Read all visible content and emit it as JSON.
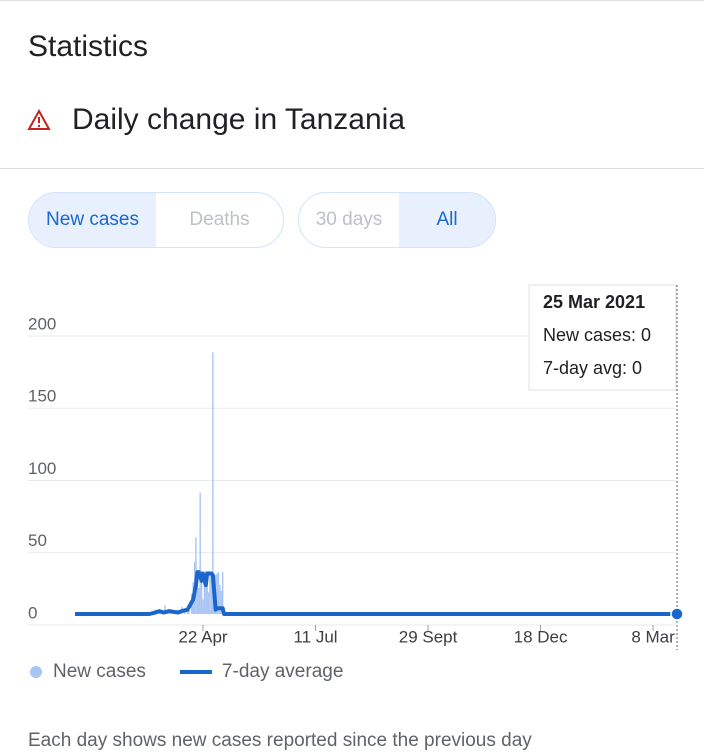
{
  "header": {
    "title": "Statistics",
    "subtitle": "Daily change in Tanzania"
  },
  "tabs": {
    "metric": [
      "New cases",
      "Deaths"
    ],
    "range": [
      "30 days",
      "All"
    ]
  },
  "chart_data": {
    "type": "combo",
    "xlim": [
      0,
      428
    ],
    "xticks": [
      {
        "value": 91,
        "label": "22 Apr"
      },
      {
        "value": 171,
        "label": "11 Jul"
      },
      {
        "value": 251,
        "label": "29 Sept"
      },
      {
        "value": 331,
        "label": "18 Dec"
      },
      {
        "value": 411,
        "label": "8 Mar"
      }
    ],
    "ylim": [
      0,
      200
    ],
    "yticks": [
      0,
      50,
      100,
      150,
      200
    ],
    "grid": true,
    "series": [
      {
        "name": "New cases",
        "type": "bar",
        "color": "#a8c5f2",
        "x": [
          54,
          57,
          60,
          64,
          66,
          68,
          70,
          72,
          74,
          76,
          78,
          80,
          81,
          83,
          84,
          85,
          86,
          87,
          88,
          89,
          90,
          91,
          92,
          93,
          94,
          95,
          96,
          97,
          98,
          99,
          100,
          101,
          102,
          103,
          104,
          105
        ],
        "values": [
          1,
          3,
          2,
          6,
          1,
          2,
          1,
          3,
          1,
          5,
          2,
          3,
          7,
          14,
          22,
          36,
          53,
          29,
          18,
          84,
          30,
          10,
          25,
          30,
          20,
          15,
          28,
          29,
          181,
          20,
          27,
          28,
          29,
          20,
          16,
          29
        ]
      },
      {
        "name": "7-day average",
        "type": "line",
        "color": "#1a66cc",
        "x": [
          0,
          53,
          57,
          60,
          63,
          67,
          73,
          76,
          80,
          84,
          86,
          87,
          88,
          90,
          91,
          93,
          94,
          97,
          98,
          100,
          101,
          105,
          106,
          428
        ],
        "values": [
          0,
          0,
          1,
          2,
          1,
          2,
          1,
          2,
          3,
          10,
          20,
          29,
          29,
          23,
          28,
          20,
          28,
          28,
          27,
          3,
          4,
          4,
          0,
          0
        ]
      }
    ]
  },
  "tooltip": {
    "date": "25 Mar 2021",
    "lines": [
      "New cases: 0",
      "7-day avg: 0"
    ]
  },
  "footnote": "Each day shows new cases reported since the previous day"
}
